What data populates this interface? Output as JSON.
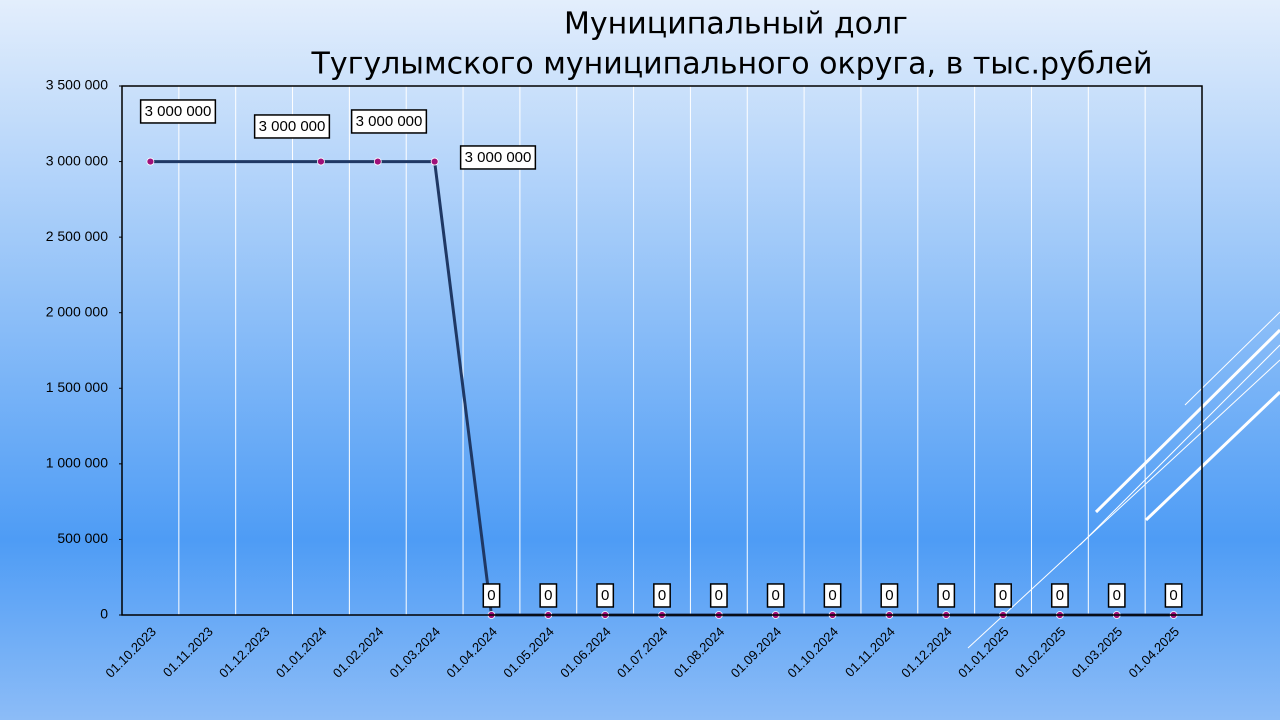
{
  "chart_data": {
    "type": "line",
    "title": [
      "Муниципальный долг",
      "Тугулымского муниципального округа, в тыс.рублей"
    ],
    "categories": [
      "01.10.2023",
      "01.11.2023",
      "01.12.2023",
      "01.01.2024",
      "01.02.2024",
      "01.03.2024",
      "01.04.2024",
      "01.05.2024",
      "01.06.2024",
      "01.07.2024",
      "01.08.2024",
      "01.09.2024",
      "01.10.2024",
      "01.11.2024",
      "01.12.2024",
      "01.01.2025",
      "01.02.2025",
      "01.03.2025",
      "01.04.2025"
    ],
    "series": [
      {
        "color": "#1f3864",
        "marker_color": "#a0107a",
        "values": [
          3000000,
          null,
          null,
          3000000,
          3000000,
          3000000,
          0,
          0,
          0,
          0,
          0,
          0,
          0,
          0,
          0,
          0,
          0,
          0,
          0
        ],
        "value_labels": [
          "3 000 000",
          null,
          null,
          "3 000 000",
          "3 000 000",
          "3 000 000",
          "0",
          "0",
          "0",
          "0",
          "0",
          "0",
          "0",
          "0",
          "0",
          "0",
          "0",
          "0",
          "0"
        ]
      }
    ],
    "ylim": [
      0,
      3500000
    ],
    "yticks": [
      0,
      {
        "value": 500000,
        "label": "500 000"
      },
      {
        "value": 1000000,
        "label": "1 000 000"
      },
      {
        "value": 1500000,
        "label": "1 500 000"
      },
      {
        "value": 2000000,
        "label": "2 000 000"
      },
      {
        "value": 2500000,
        "label": "2 500 000"
      },
      {
        "value": 3000000,
        "label": "3 000 000"
      },
      {
        "value": 3500000,
        "label": "3 500 000"
      }
    ],
    "grid": "x"
  }
}
